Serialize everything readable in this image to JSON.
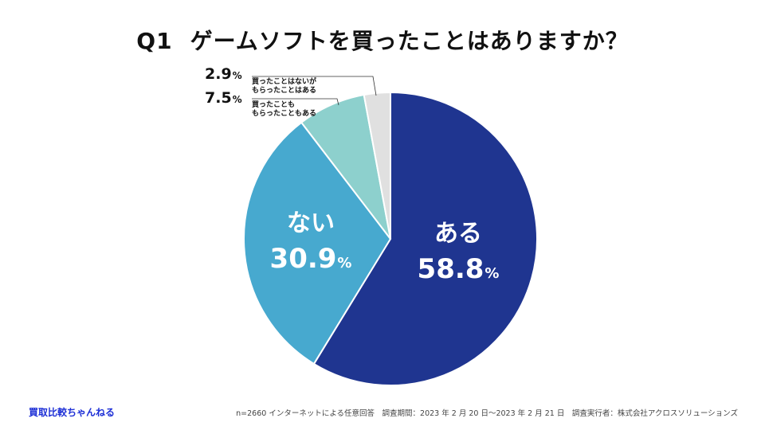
{
  "title": {
    "prefix": "Q1",
    "text": "ゲームソフトを買ったことはありますか？"
  },
  "chart_data": {
    "type": "pie",
    "start_angle_deg": 0,
    "direction": "clockwise",
    "slices": [
      {
        "label": "ある",
        "value": 58.8,
        "display": "58.8",
        "color": "#1f3590"
      },
      {
        "label": "ない",
        "value": 30.9,
        "display": "30.9",
        "color": "#47a9cf"
      },
      {
        "label_lines": [
          "買ったことも",
          "もらったこともある"
        ],
        "value": 7.5,
        "display": "7.5",
        "color": "#8dd0cd"
      },
      {
        "label_lines": [
          "買ったことはないが",
          "もらったことはある"
        ],
        "value": 2.9,
        "display": "2.9",
        "color": "#e0e0e0"
      }
    ],
    "unit": "%"
  },
  "footer": {
    "brand": "買取比較ちゃんねる",
    "note": "n=2660 インターネットによる任意回答　調査期間：2023 年 2 月 20 日〜2023 年 2 月 21 日　調査実行者：株式会社アクロスソリューションズ"
  }
}
